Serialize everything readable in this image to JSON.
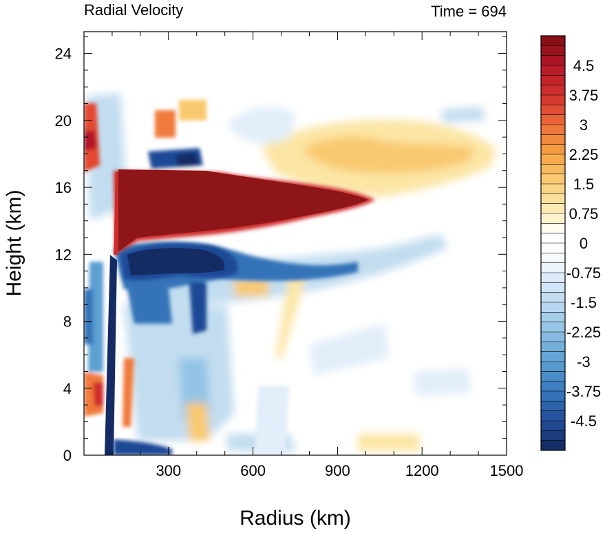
{
  "chart_data": {
    "type": "heatmap",
    "title": "Radial Velocity",
    "right_title": "Time = 694",
    "xlabel": "Radius (km)",
    "ylabel": "Height (km)",
    "xlim": [
      0,
      1500
    ],
    "ylim": [
      0,
      25.3
    ],
    "xticks": [
      300,
      600,
      900,
      1200,
      1500
    ],
    "xtick_labels": [
      "300",
      "600",
      "900",
      "1200",
      "1500"
    ],
    "yticks": [
      0,
      4,
      8,
      12,
      16,
      20,
      24
    ],
    "ytick_labels": [
      "0",
      "4",
      "8",
      "12",
      "16",
      "20",
      "24"
    ],
    "colorbar": {
      "min": -5.25,
      "max": 5.25,
      "step": 0.25,
      "labels": [
        "4.5",
        "3.75",
        "3",
        "2.25",
        "1.5",
        "0.75",
        "0",
        "-0.75",
        "-1.5",
        "-2.25",
        "-3",
        "-3.75",
        "-4.5"
      ],
      "label_values": [
        4.5,
        3.75,
        3,
        2.25,
        1.5,
        0.75,
        0,
        -0.75,
        -1.5,
        -2.25,
        -3,
        -3.75,
        -4.5
      ],
      "colors_top_to_bottom": [
        "#8e1518",
        "#b2182b",
        "#cf2b2b",
        "#e34a33",
        "#f07a3d",
        "#f7a546",
        "#f9c970",
        "#fce6a6",
        "#fff7db",
        "#ffffff",
        "#ffffff",
        "#e2eef9",
        "#c2ddf0",
        "#93c4e6",
        "#5b9fd1",
        "#3573b8",
        "#1f4996",
        "#152b63"
      ]
    },
    "features": [
      {
        "name": "upper-outflow-jet",
        "sign": "positive",
        "r": [
          120,
          1050
        ],
        "z": [
          13,
          17
        ],
        "peak": 5.25
      },
      {
        "name": "outflow-underlayer",
        "sign": "negative",
        "r": [
          120,
          650
        ],
        "z": [
          10,
          13
        ],
        "peak": -5.25
      },
      {
        "name": "eyewall-inflow",
        "sign": "negative",
        "r": [
          90,
          140
        ],
        "z": [
          0,
          12
        ],
        "peak": -5.25
      },
      {
        "name": "boundary-layer-inflow",
        "sign": "negative",
        "r": [
          120,
          500
        ],
        "z": [
          0,
          0.7
        ],
        "peak": -5.25
      },
      {
        "name": "upper-level-outflow",
        "sign": "positive",
        "r": [
          650,
          1450
        ],
        "z": [
          16.5,
          21
        ],
        "peak": 3
      }
    ]
  }
}
